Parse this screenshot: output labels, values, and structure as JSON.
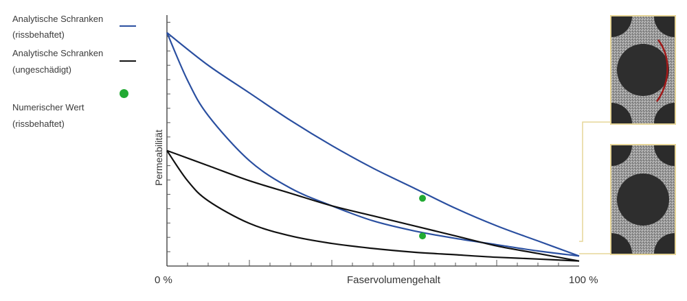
{
  "chart_data": {
    "type": "line",
    "title": "",
    "xlabel": "Faservolumengehalt",
    "ylabel": "Permeabilität",
    "x_tick_labels": [
      "0 %",
      "100 %"
    ],
    "xlim": [
      0,
      100
    ],
    "ylim": [
      0,
      1
    ],
    "grid": false,
    "legend_position": "top-left",
    "series": [
      {
        "name": "Analytische Schranken (rissbehaftet)",
        "color": "#2a4fa0",
        "kind": "upper",
        "x": [
          0,
          10,
          20,
          30,
          40,
          50,
          60,
          70,
          80,
          90,
          100
        ],
        "y": [
          0.93,
          0.8,
          0.69,
          0.58,
          0.48,
          0.39,
          0.31,
          0.23,
          0.16,
          0.1,
          0.04
        ]
      },
      {
        "name": "Analytische Schranken (rissbehaftet)",
        "color": "#2a4fa0",
        "kind": "lower",
        "x": [
          0,
          5,
          10,
          20,
          30,
          40,
          50,
          60,
          70,
          80,
          90,
          100
        ],
        "y": [
          0.93,
          0.74,
          0.6,
          0.42,
          0.31,
          0.24,
          0.18,
          0.14,
          0.11,
          0.085,
          0.06,
          0.04
        ]
      },
      {
        "name": "Analytische Schranken (ungeschädigt)",
        "color": "#111111",
        "kind": "upper",
        "x": [
          0,
          10,
          20,
          30,
          40,
          50,
          60,
          70,
          80,
          90,
          100
        ],
        "y": [
          0.46,
          0.4,
          0.34,
          0.29,
          0.24,
          0.2,
          0.16,
          0.12,
          0.08,
          0.05,
          0.02
        ]
      },
      {
        "name": "Analytische Schranken (ungeschädigt)",
        "color": "#111111",
        "kind": "lower",
        "x": [
          0,
          5,
          10,
          20,
          30,
          40,
          50,
          60,
          70,
          80,
          90,
          100
        ],
        "y": [
          0.46,
          0.34,
          0.26,
          0.17,
          0.12,
          0.09,
          0.07,
          0.055,
          0.045,
          0.035,
          0.028,
          0.02
        ]
      }
    ],
    "points": {
      "name": "Numerischer Wert (rissbehaftet)",
      "color": "#22aa33",
      "x": [
        62,
        62
      ],
      "y": [
        0.27,
        0.12
      ]
    }
  },
  "legend": {
    "item1_line1": "Analytische Schranken",
    "item1_line2": "(rissbehaftet)",
    "item2_line1": "Analytische Schranken",
    "item2_line2": "(ungeschädigt)",
    "item3_line1": "Numerischer Wert",
    "item3_line2": "(rissbehaftet)"
  },
  "colors": {
    "blue": "#2a4fa0",
    "black": "#111111",
    "green": "#22aa33",
    "crack": "#a01818",
    "frame": "#e6d597"
  },
  "images": {
    "top": "microstructure-with-crack",
    "bottom": "microstructure-undamaged"
  }
}
